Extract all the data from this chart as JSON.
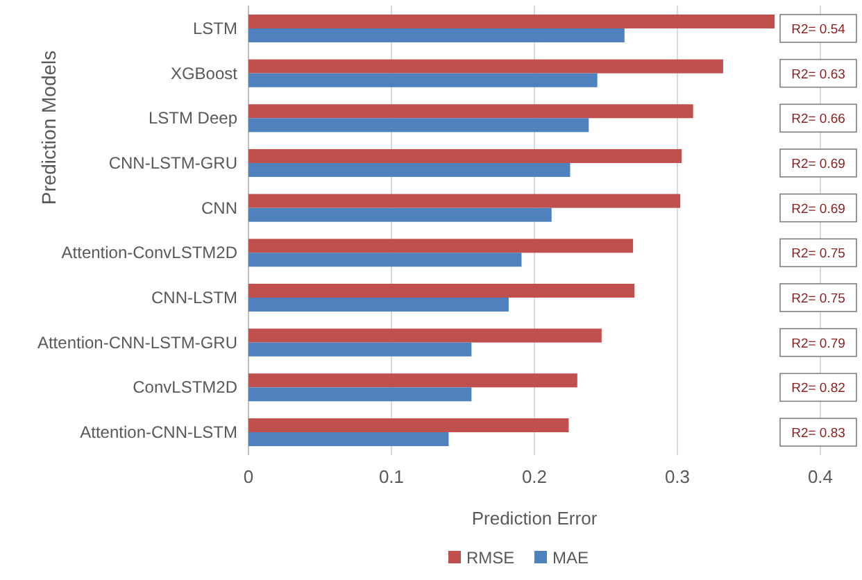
{
  "chart_data": {
    "type": "bar",
    "orientation": "horizontal",
    "xlabel": "Prediction Error",
    "ylabel": "Prediction Models",
    "categories": [
      "LSTM",
      "XGBoost",
      "LSTM Deep",
      "CNN-LSTM-GRU",
      "CNN",
      "Attention-ConvLSTM2D",
      "CNN-LSTM",
      "Attention-CNN-LSTM-GRU",
      "ConvLSTM2D",
      "Attention-CNN-LSTM"
    ],
    "series": [
      {
        "name": "RMSE",
        "color": "#c0504d",
        "values": [
          0.368,
          0.332,
          0.311,
          0.303,
          0.302,
          0.269,
          0.27,
          0.247,
          0.23,
          0.224
        ]
      },
      {
        "name": "MAE",
        "color": "#4f81bd",
        "values": [
          0.263,
          0.244,
          0.238,
          0.225,
          0.212,
          0.191,
          0.182,
          0.156,
          0.156,
          0.14
        ]
      }
    ],
    "xlim": [
      0,
      0.4
    ],
    "xticks": [
      0,
      0.1,
      0.2,
      0.3,
      0.4
    ],
    "grid": "x",
    "legend": "bottom",
    "annotations": [
      "R2= 0.54",
      "R2= 0.63",
      "R2= 0.66",
      "R2= 0.69",
      "R2= 0.69",
      "R2= 0.75",
      "R2= 0.75",
      "R2= 0.79",
      "R2= 0.82",
      "R2= 0.83"
    ]
  }
}
